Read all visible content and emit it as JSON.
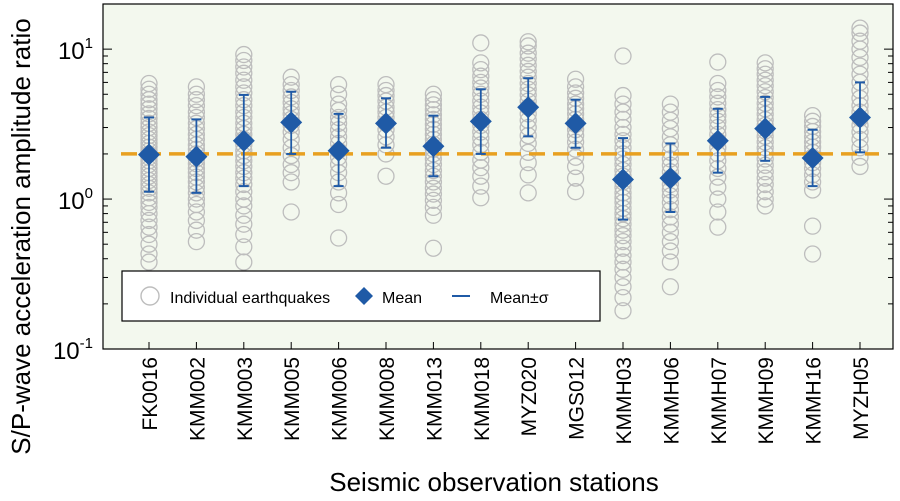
{
  "chart_data": {
    "type": "scatter",
    "title": "",
    "xlabel": "Seismic observation stations",
    "ylabel": "S/P-wave acceleration amplitude ratio",
    "yscale": "log",
    "ylim": [
      0.1,
      20
    ],
    "y_ticks": [
      {
        "value": 0.1,
        "base": "10",
        "exp": "-1"
      },
      {
        "value": 1,
        "base": "10",
        "exp": "0"
      },
      {
        "value": 10,
        "base": "10",
        "exp": "1"
      }
    ],
    "categories": [
      "FK0016",
      "KMM002",
      "KMM003",
      "KMM005",
      "KMM006",
      "KMM008",
      "KMM013",
      "KMM018",
      "MYZ020",
      "MGS012",
      "KMMH03",
      "KMMH06",
      "KMMH07",
      "KMMH09",
      "KMMH16",
      "MYZH05"
    ],
    "reference_line": {
      "value": 2.0,
      "color": "#E8A020",
      "style": "dashed"
    },
    "legend": {
      "placement": "bottom-left",
      "items": {
        "individual": "Individual earthquakes",
        "mean": "Mean",
        "sigma": "Mean±σ"
      }
    },
    "colors": {
      "background": "#F3F8EE",
      "individual": "#BDBDBD",
      "mean": "#1F5AA6",
      "errorbar": "#1F5AA6",
      "reference": "#E8A020"
    },
    "series": [
      {
        "name": "Mean",
        "values": [
          1.98,
          1.92,
          2.45,
          3.25,
          2.1,
          3.2,
          2.25,
          3.3,
          4.1,
          3.2,
          1.35,
          1.38,
          2.45,
          2.95,
          1.88,
          3.5
        ]
      },
      {
        "name": "Mean-σ",
        "values": [
          1.12,
          1.1,
          1.22,
          2.0,
          1.22,
          2.2,
          1.42,
          2.0,
          2.62,
          2.2,
          0.73,
          0.82,
          1.5,
          1.8,
          1.22,
          2.05
        ]
      },
      {
        "name": "Mean+σ",
        "values": [
          3.5,
          3.4,
          4.95,
          5.2,
          3.7,
          4.7,
          3.6,
          5.4,
          6.4,
          4.6,
          2.55,
          2.35,
          4.0,
          4.8,
          2.9,
          6.0
        ]
      }
    ],
    "individual": [
      [
        0.38,
        0.43,
        0.5,
        0.58,
        0.65,
        0.72,
        0.8,
        0.88,
        0.95,
        1.02,
        1.1,
        1.18,
        1.25,
        1.33,
        1.42,
        1.5,
        1.6,
        1.7,
        1.8,
        1.9,
        2.0,
        2.1,
        2.22,
        2.35,
        2.5,
        2.65,
        2.8,
        3.0,
        3.2,
        3.45,
        3.7,
        4.0,
        4.3,
        4.6,
        5.0,
        5.4,
        5.9
      ],
      [
        0.52,
        0.62,
        0.72,
        0.82,
        0.92,
        1.0,
        1.1,
        1.2,
        1.3,
        1.4,
        1.5,
        1.6,
        1.72,
        1.85,
        2.0,
        2.15,
        2.3,
        2.5,
        2.7,
        2.95,
        3.2,
        3.5,
        3.8,
        4.2,
        4.6,
        5.0,
        5.6
      ],
      [
        0.38,
        0.48,
        0.58,
        0.68,
        0.78,
        0.9,
        1.0,
        1.12,
        1.25,
        1.38,
        1.5,
        1.65,
        1.8,
        1.95,
        2.1,
        2.3,
        2.5,
        2.7,
        2.95,
        3.2,
        3.5,
        3.8,
        4.2,
        4.6,
        5.1,
        5.6,
        6.2,
        6.9,
        7.6,
        8.4,
        9.2
      ],
      [
        0.82,
        1.3,
        1.5,
        1.7,
        1.95,
        2.2,
        2.5,
        2.8,
        3.1,
        3.4,
        3.7,
        4.0,
        4.4,
        4.8,
        5.3,
        5.8,
        6.5
      ],
      [
        0.55,
        0.92,
        1.1,
        1.3,
        1.5,
        1.7,
        1.9,
        2.1,
        2.35,
        2.6,
        2.9,
        3.2,
        3.5,
        3.9,
        4.3,
        5.0,
        5.8
      ],
      [
        1.42,
        2.0,
        2.3,
        2.6,
        2.9,
        3.2,
        3.5,
        3.8,
        4.1,
        4.5,
        4.9,
        5.3,
        5.8
      ],
      [
        0.47,
        0.78,
        0.88,
        0.98,
        1.08,
        1.18,
        1.3,
        1.42,
        1.55,
        1.7,
        1.85,
        2.0,
        2.15,
        2.32,
        2.5,
        2.7,
        2.92,
        3.15,
        3.4,
        3.65,
        3.95,
        4.25,
        4.6,
        5.0
      ],
      [
        1.02,
        1.22,
        1.42,
        1.62,
        1.82,
        2.05,
        2.3,
        2.55,
        2.8,
        3.1,
        3.4,
        3.75,
        4.1,
        4.5,
        5.0,
        5.5,
        6.0,
        6.6,
        7.3,
        8.1,
        11.0
      ],
      [
        1.1,
        1.45,
        1.75,
        2.05,
        2.35,
        2.65,
        3.0,
        3.35,
        3.7,
        4.1,
        4.5,
        4.95,
        5.4,
        5.9,
        6.5,
        7.1,
        7.8,
        8.6,
        9.4,
        10.5,
        11.2
      ],
      [
        1.12,
        1.38,
        1.65,
        1.9,
        2.15,
        2.4,
        2.65,
        2.9,
        3.15,
        3.4,
        3.7,
        4.0,
        4.3,
        4.7,
        5.1,
        5.6,
        6.3
      ],
      [
        0.18,
        0.22,
        0.26,
        0.3,
        0.34,
        0.38,
        0.42,
        0.47,
        0.52,
        0.57,
        0.62,
        0.68,
        0.74,
        0.8,
        0.87,
        0.95,
        1.02,
        1.1,
        1.2,
        1.3,
        1.42,
        1.55,
        1.7,
        1.85,
        2.0,
        2.2,
        2.45,
        2.7,
        3.0,
        3.4,
        3.8,
        4.3,
        4.9,
        9.0
      ],
      [
        0.26,
        0.38,
        0.45,
        0.52,
        0.6,
        0.68,
        0.76,
        0.85,
        0.95,
        1.05,
        1.15,
        1.25,
        1.38,
        1.52,
        1.68,
        1.85,
        2.05,
        2.3,
        2.6,
        2.95,
        3.35,
        3.8,
        4.3
      ],
      [
        0.65,
        0.82,
        1.0,
        1.2,
        1.4,
        1.6,
        1.8,
        2.0,
        2.2,
        2.45,
        2.7,
        3.0,
        3.3,
        3.6,
        3.95,
        4.35,
        4.8,
        5.3,
        5.9,
        8.2
      ],
      [
        0.9,
        1.0,
        1.12,
        1.25,
        1.38,
        1.52,
        1.68,
        1.85,
        2.02,
        2.2,
        2.4,
        2.62,
        2.85,
        3.1,
        3.38,
        3.68,
        4.0,
        4.35,
        4.75,
        5.2,
        5.7,
        6.2,
        6.8,
        7.4,
        8.1
      ],
      [
        0.43,
        0.66,
        1.15,
        1.3,
        1.45,
        1.6,
        1.75,
        1.9,
        2.05,
        2.22,
        2.4,
        2.6,
        2.82,
        3.05,
        3.3,
        3.6
      ],
      [
        1.65,
        1.9,
        2.2,
        2.5,
        2.8,
        3.1,
        3.45,
        3.8,
        4.2,
        4.7,
        5.3,
        6.0,
        6.8,
        7.7,
        8.8,
        10.0,
        11.3,
        12.8,
        13.8
      ]
    ]
  }
}
